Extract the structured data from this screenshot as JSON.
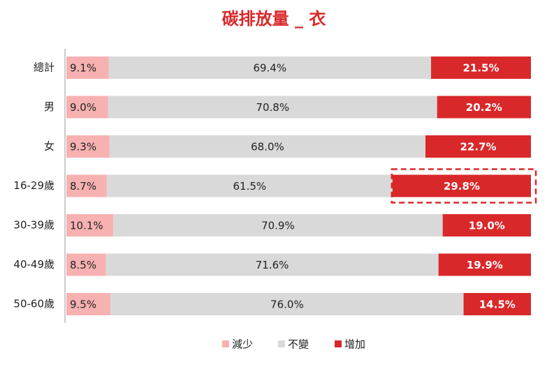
{
  "chart_data": {
    "type": "stacked_bar_horizontal",
    "title": "碳排放量 _ 衣",
    "categories": [
      "總計",
      "男",
      "女",
      "16-29歲",
      "30-39歲",
      "40-49歲",
      "50-60歲"
    ],
    "xlim": [
      0,
      100
    ],
    "series": [
      {
        "name": "減少",
        "color": "#f7b1b1",
        "values": [
          9.1,
          9.0,
          9.3,
          8.7,
          10.1,
          8.5,
          9.5
        ],
        "value_labels": [
          "9.1%",
          "9.0%",
          "9.3%",
          "8.7%",
          "10.1%",
          "8.5%",
          "9.5%"
        ]
      },
      {
        "name": "不變",
        "color": "#d9d9d9",
        "values": [
          69.4,
          70.8,
          68.0,
          61.5,
          70.9,
          71.6,
          76.0
        ],
        "value_labels": [
          "69.4%",
          "70.8%",
          "68.0%",
          "61.5%",
          "70.9%",
          "71.6%",
          "76.0%"
        ]
      },
      {
        "name": "增加",
        "color": "#d9282a",
        "values": [
          21.5,
          20.2,
          22.7,
          29.8,
          19.0,
          19.9,
          14.5
        ],
        "value_labels": [
          "21.5%",
          "20.2%",
          "22.7%",
          "29.8%",
          "19.0%",
          "19.9%",
          "14.5%"
        ]
      }
    ],
    "highlight": {
      "series": 2,
      "index": 3
    },
    "legend": "bottom"
  }
}
